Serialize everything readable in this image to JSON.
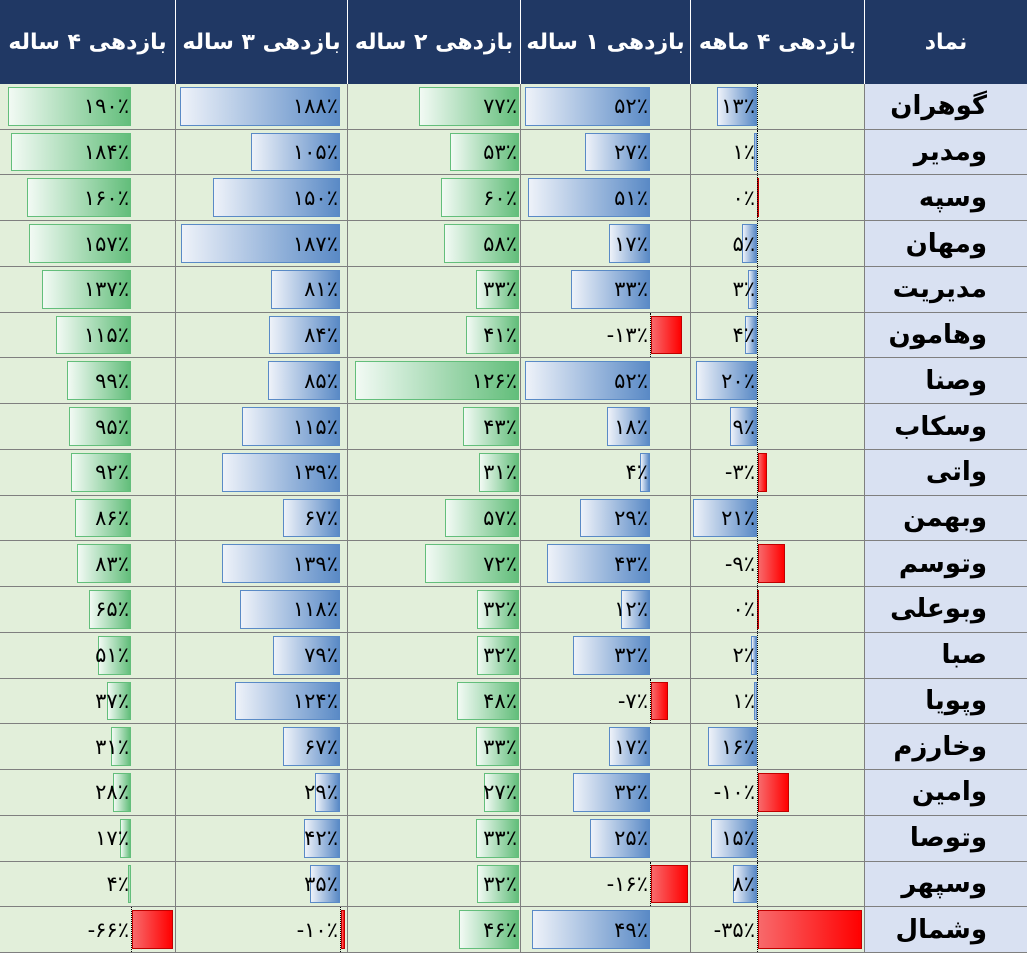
{
  "headers": {
    "symbol": "نماد",
    "r4m": "بازدهی ۴ ماهه",
    "r1y": "بازدهی ۱ ساله",
    "r2y": "بازدهی ۲ ساله",
    "r3y": "بازدهی ۳ ساله",
    "r4y": "بازدهی ۴ ساله"
  },
  "colors": {
    "header_bg": "#203864",
    "name_bg": "#d9e1f2",
    "cell_bg": "#e2efda",
    "green_bar": "#63be7b",
    "blue_bar": "#5a8ac6",
    "negative_bar": "#ff0000"
  },
  "rows": [
    {
      "name": "گوهران",
      "r4m": 13,
      "r4m_label": "۱۳٪",
      "r1y": 52,
      "r1y_label": "۵۲٪",
      "r2y": 77,
      "r2y_label": "۷۷٪",
      "r3y": 188,
      "r3y_label": "۱۸۸٪",
      "r4y": 190,
      "r4y_label": "۱۹۰٪"
    },
    {
      "name": "ومدیر",
      "r4m": 1,
      "r4m_label": "۱٪",
      "r1y": 27,
      "r1y_label": "۲۷٪",
      "r2y": 53,
      "r2y_label": "۵۳٪",
      "r3y": 105,
      "r3y_label": "۱۰۵٪",
      "r4y": 184,
      "r4y_label": "۱۸۴٪"
    },
    {
      "name": "وسپه",
      "r4m": 0,
      "r4m_label": "۰٪",
      "r1y": 51,
      "r1y_label": "۵۱٪",
      "r2y": 60,
      "r2y_label": "۶۰٪",
      "r3y": 150,
      "r3y_label": "۱۵۰٪",
      "r4y": 160,
      "r4y_label": "۱۶۰٪"
    },
    {
      "name": "ومهان",
      "r4m": 5,
      "r4m_label": "۵٪",
      "r1y": 17,
      "r1y_label": "۱۷٪",
      "r2y": 58,
      "r2y_label": "۵۸٪",
      "r3y": 187,
      "r3y_label": "۱۸۷٪",
      "r4y": 157,
      "r4y_label": "۱۵۷٪"
    },
    {
      "name": "مدیریت",
      "r4m": 3,
      "r4m_label": "۳٪",
      "r1y": 33,
      "r1y_label": "۳۳٪",
      "r2y": 33,
      "r2y_label": "۳۳٪",
      "r3y": 81,
      "r3y_label": "۸۱٪",
      "r4y": 137,
      "r4y_label": "۱۳۷٪"
    },
    {
      "name": "وهامون",
      "r4m": 4,
      "r4m_label": "۴٪",
      "r1y": -13,
      "r1y_label": "-۱۳٪",
      "r2y": 41,
      "r2y_label": "۴۱٪",
      "r3y": 84,
      "r3y_label": "۸۴٪",
      "r4y": 115,
      "r4y_label": "۱۱۵٪"
    },
    {
      "name": "وصنا",
      "r4m": 20,
      "r4m_label": "۲۰٪",
      "r1y": 52,
      "r1y_label": "۵۲٪",
      "r2y": 126,
      "r2y_label": "۱۲۶٪",
      "r3y": 85,
      "r3y_label": "۸۵٪",
      "r4y": 99,
      "r4y_label": "۹۹٪"
    },
    {
      "name": "وسکاب",
      "r4m": 9,
      "r4m_label": "۹٪",
      "r1y": 18,
      "r1y_label": "۱۸٪",
      "r2y": 43,
      "r2y_label": "۴۳٪",
      "r3y": 115,
      "r3y_label": "۱۱۵٪",
      "r4y": 95,
      "r4y_label": "۹۵٪"
    },
    {
      "name": "واتی",
      "r4m": -3,
      "r4m_label": "-۳٪",
      "r1y": 4,
      "r1y_label": "۴٪",
      "r2y": 31,
      "r2y_label": "۳۱٪",
      "r3y": 139,
      "r3y_label": "۱۳۹٪",
      "r4y": 92,
      "r4y_label": "۹۲٪"
    },
    {
      "name": "وبهمن",
      "r4m": 21,
      "r4m_label": "۲۱٪",
      "r1y": 29,
      "r1y_label": "۲۹٪",
      "r2y": 57,
      "r2y_label": "۵۷٪",
      "r3y": 67,
      "r3y_label": "۶۷٪",
      "r4y": 86,
      "r4y_label": "۸۶٪"
    },
    {
      "name": "وتوسم",
      "r4m": -9,
      "r4m_label": "-۹٪",
      "r1y": 43,
      "r1y_label": "۴۳٪",
      "r2y": 72,
      "r2y_label": "۷۲٪",
      "r3y": 139,
      "r3y_label": "۱۳۹٪",
      "r4y": 83,
      "r4y_label": "۸۳٪"
    },
    {
      "name": "وبوعلی",
      "r4m": 0,
      "r4m_label": "۰٪",
      "r1y": 12,
      "r1y_label": "۱۲٪",
      "r2y": 32,
      "r2y_label": "۳۲٪",
      "r3y": 118,
      "r3y_label": "۱۱۸٪",
      "r4y": 65,
      "r4y_label": "۶۵٪"
    },
    {
      "name": "صبا",
      "r4m": 2,
      "r4m_label": "۲٪",
      "r1y": 32,
      "r1y_label": "۳۲٪",
      "r2y": 32,
      "r2y_label": "۳۲٪",
      "r3y": 79,
      "r3y_label": "۷۹٪",
      "r4y": 51,
      "r4y_label": "۵۱٪"
    },
    {
      "name": "وپویا",
      "r4m": 1,
      "r4m_label": "۱٪",
      "r1y": -7,
      "r1y_label": "-۷٪",
      "r2y": 48,
      "r2y_label": "۴۸٪",
      "r3y": 124,
      "r3y_label": "۱۲۴٪",
      "r4y": 37,
      "r4y_label": "۳۷٪"
    },
    {
      "name": "وخارزم",
      "r4m": 16,
      "r4m_label": "۱۶٪",
      "r1y": 17,
      "r1y_label": "۱۷٪",
      "r2y": 33,
      "r2y_label": "۳۳٪",
      "r3y": 67,
      "r3y_label": "۶۷٪",
      "r4y": 31,
      "r4y_label": "۳۱٪"
    },
    {
      "name": "وامین",
      "r4m": -10,
      "r4m_label": "-۱۰٪",
      "r1y": 32,
      "r1y_label": "۳۲٪",
      "r2y": 27,
      "r2y_label": "۲۷٪",
      "r3y": 29,
      "r3y_label": "۲۹٪",
      "r4y": 28,
      "r4y_label": "۲۸٪"
    },
    {
      "name": "وتوصا",
      "r4m": 15,
      "r4m_label": "۱۵٪",
      "r1y": 25,
      "r1y_label": "۲۵٪",
      "r2y": 33,
      "r2y_label": "۳۳٪",
      "r3y": 42,
      "r3y_label": "۴۲٪",
      "r4y": 17,
      "r4y_label": "۱۷٪"
    },
    {
      "name": "وسپهر",
      "r4m": 8,
      "r4m_label": "۸٪",
      "r1y": -16,
      "r1y_label": "-۱۶٪",
      "r2y": 32,
      "r2y_label": "۳۲٪",
      "r3y": 35,
      "r3y_label": "۳۵٪",
      "r4y": 4,
      "r4y_label": "۴٪"
    },
    {
      "name": "وشمال",
      "r4m": -35,
      "r4m_label": "-۳۵٪",
      "r1y": 49,
      "r1y_label": "۴۹٪",
      "r2y": 46,
      "r2y_label": "۴۶٪",
      "r3y": -10,
      "r3y_label": "-۱۰٪",
      "r4y": -66,
      "r4y_label": "-۶۶٪"
    }
  ]
}
